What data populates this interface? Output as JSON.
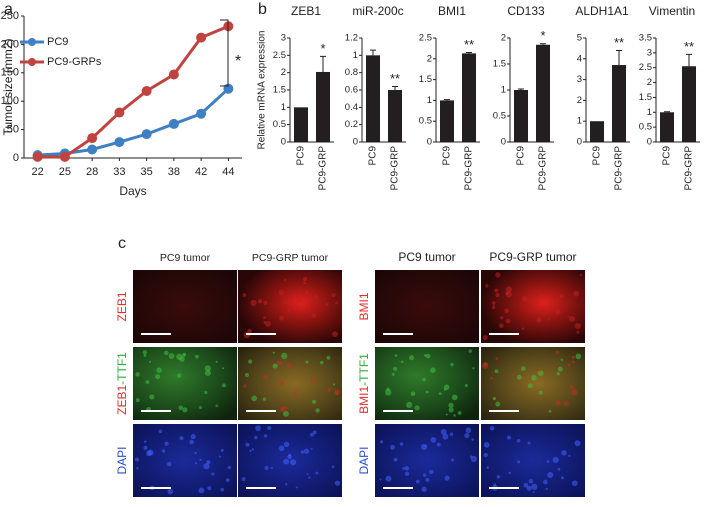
{
  "panel_labels": [
    "a",
    "b",
    "c"
  ],
  "chart_data": [
    {
      "type": "line",
      "x_label": "Days",
      "y_label": "Tumor size (mm2)",
      "categories": [
        "22",
        "25",
        "28",
        "33",
        "35",
        "38",
        "42",
        "44"
      ],
      "ylim": [
        0,
        250
      ],
      "yticks": [
        0,
        50,
        100,
        150,
        200,
        250
      ],
      "series": [
        {
          "name": "PC9",
          "color": "#3f7fc4",
          "values": [
            5,
            8,
            15,
            28,
            42,
            60,
            78,
            122
          ]
        },
        {
          "name": "PC9-GRPs",
          "color": "#c0433f",
          "values": [
            2,
            2,
            35,
            80,
            118,
            147,
            212,
            232
          ]
        }
      ],
      "legend": "upper left",
      "annotation": "*"
    },
    {
      "type": "bar",
      "title": "ZEB1",
      "y_label": "Relative mRNA  expression",
      "categories": [
        "PC9",
        "PC9-GRP"
      ],
      "values": [
        1,
        2.02
      ],
      "errors": [
        0,
        0.45
      ],
      "color": "#231f20",
      "ylim": [
        0,
        3
      ],
      "yticks": [
        0,
        0.5,
        1,
        1.5,
        2,
        2.5,
        3
      ],
      "annotation": "*"
    },
    {
      "type": "bar",
      "title": "miR-200c",
      "categories": [
        "PC9",
        "PC9-GRP"
      ],
      "values": [
        1,
        0.6
      ],
      "errors": [
        0.06,
        0.04
      ],
      "color": "#231f20",
      "ylim": [
        0,
        1.2
      ],
      "yticks": [
        0,
        0.2,
        0.4,
        0.6,
        0.8,
        1,
        1.2
      ],
      "annotation": "**"
    },
    {
      "type": "bar",
      "title": "BMI1",
      "categories": [
        "PC9",
        "PC9-GRP"
      ],
      "values": [
        1,
        2.13
      ],
      "errors": [
        0.02,
        0.02
      ],
      "color": "#231f20",
      "ylim": [
        0,
        2.5
      ],
      "yticks": [
        0,
        0.5,
        1,
        1.5,
        2,
        2.5
      ],
      "annotation": "**"
    },
    {
      "type": "bar",
      "title": "CD133",
      "categories": [
        "PC9",
        "PC9-GRP"
      ],
      "values": [
        1,
        1.87
      ],
      "errors": [
        0.02,
        0.02
      ],
      "color": "#231f20",
      "ylim": [
        0,
        2
      ],
      "yticks": [
        0,
        0.5,
        1,
        1.5,
        2
      ],
      "annotation": "*"
    },
    {
      "type": "bar",
      "title": "ALDH1A1",
      "categories": [
        "PC9",
        "PC9-GRP"
      ],
      "values": [
        1,
        3.7
      ],
      "errors": [
        0,
        0.7
      ],
      "color": "#231f20",
      "ylim": [
        0,
        5
      ],
      "yticks": [
        0,
        1,
        2,
        3,
        4,
        5
      ],
      "annotation": "**"
    },
    {
      "type": "bar",
      "title": "Vimentin",
      "categories": [
        "PC9",
        "PC9-GRP"
      ],
      "values": [
        1,
        2.55
      ],
      "errors": [
        0.02,
        0.4
      ],
      "color": "#231f20",
      "ylim": [
        0,
        3.5
      ],
      "yticks": [
        0,
        0.5,
        1,
        1.5,
        2,
        2.5,
        3,
        3.5
      ],
      "annotation": "**"
    }
  ],
  "panel_c": {
    "groups": [
      {
        "headers": [
          "PC9 tumor",
          "PC9-GRP tumor"
        ],
        "rows": [
          [
            "ZEB1"
          ],
          [
            "ZEB1",
            "-TTF1"
          ],
          [
            "DAPI"
          ]
        ]
      },
      {
        "headers": [
          "PC9 tumor",
          "PC9-GRP tumor"
        ],
        "rows": [
          [
            "BMI1"
          ],
          [
            "BMI1",
            "-TTF1"
          ],
          [
            "DAPI"
          ]
        ]
      }
    ]
  }
}
